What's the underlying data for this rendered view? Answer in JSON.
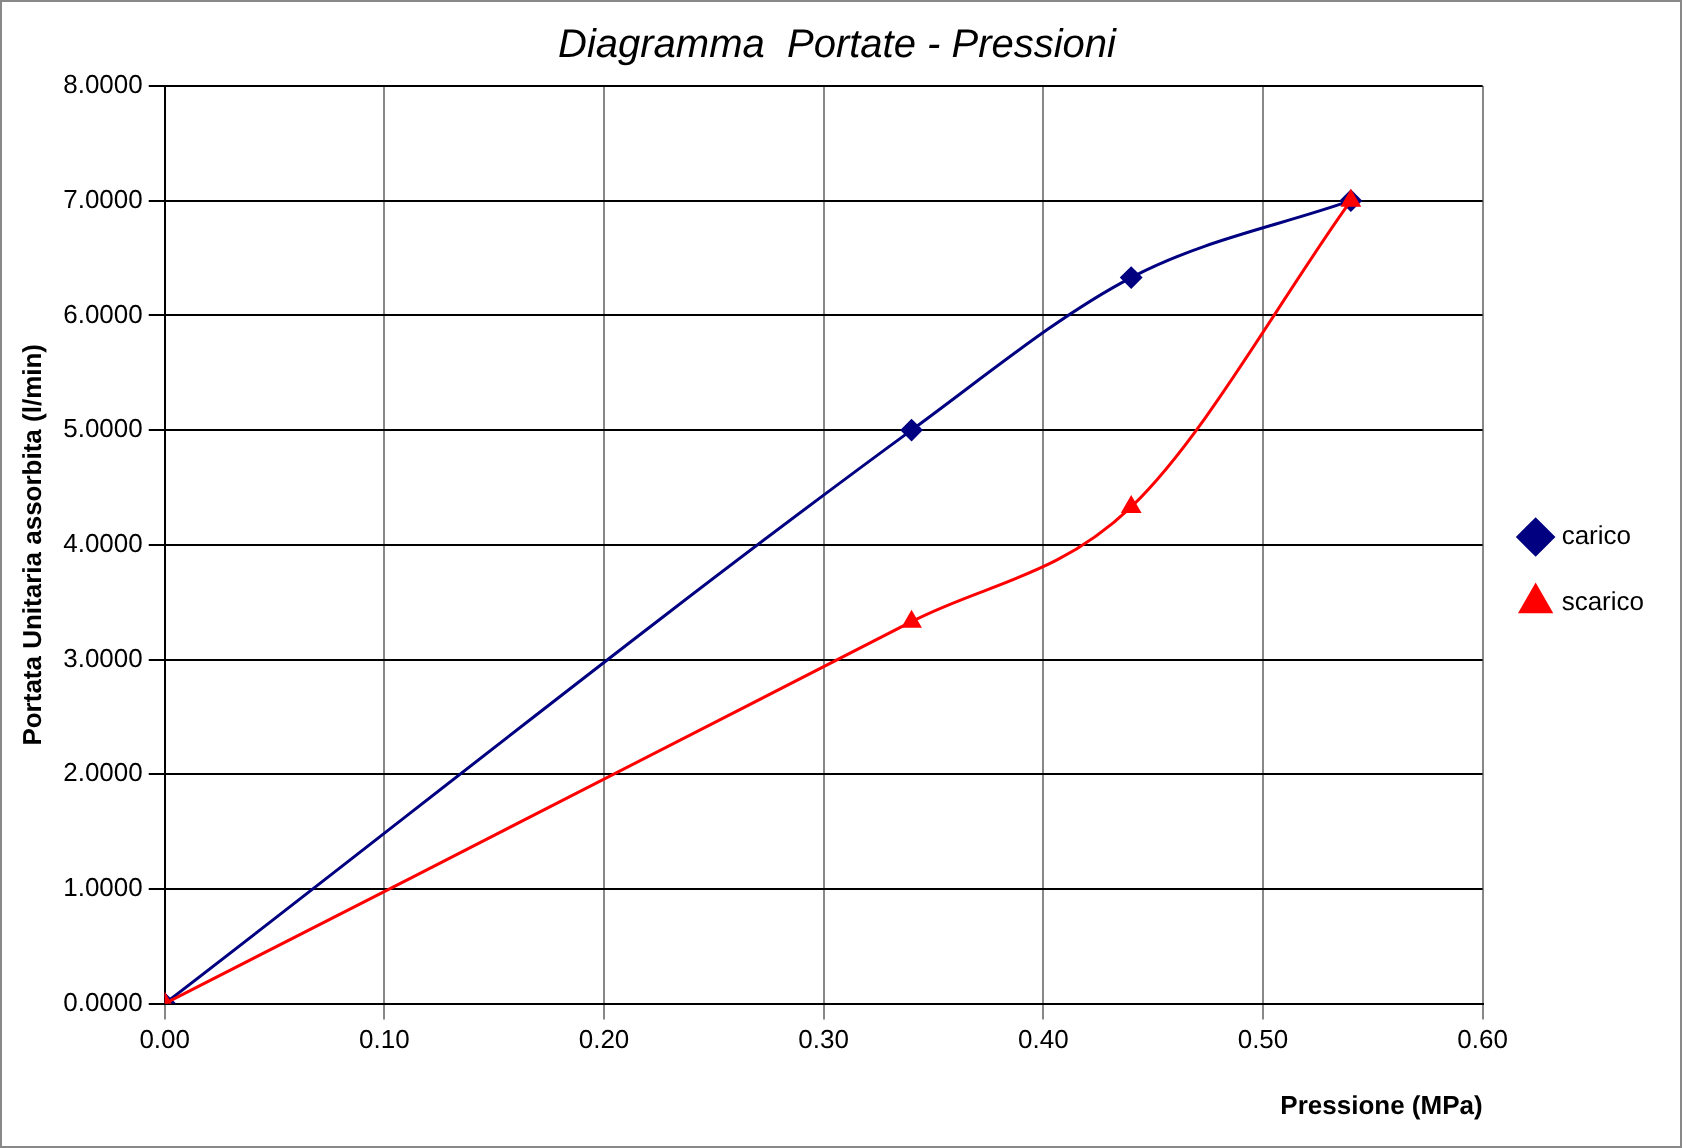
{
  "chart_data": {
    "type": "line",
    "title": "Diagramma  Portate - Pressioni",
    "xlabel": "Pressione (MPa)",
    "ylabel": "Portata Unitaria assorbita (l/min)",
    "x": [
      0,
      0.34,
      0.44,
      0.54
    ],
    "series": [
      {
        "name": "carico",
        "color": "#000080",
        "marker": "diamond",
        "values": [
          0,
          5.0,
          6.33,
          7.0
        ]
      },
      {
        "name": "scarico",
        "color": "#ff0000",
        "marker": "triangle",
        "values": [
          0,
          3.33,
          4.33,
          7.0
        ]
      }
    ],
    "xlim": [
      0,
      0.6
    ],
    "xticks": [
      {
        "value": 0,
        "label": "0.00"
      },
      {
        "value": 0.1,
        "label": "0.10"
      },
      {
        "value": 0.2,
        "label": "0.20"
      },
      {
        "value": 0.3,
        "label": "0.30"
      },
      {
        "value": 0.4,
        "label": "0.40"
      },
      {
        "value": 0.5,
        "label": "0.50"
      },
      {
        "value": 0.6,
        "label": "0.60"
      }
    ],
    "ylim": [
      0,
      8
    ],
    "yticks": [
      {
        "value": 0,
        "label": "0.0000"
      },
      {
        "value": 1,
        "label": "1.0000"
      },
      {
        "value": 2,
        "label": "2.0000"
      },
      {
        "value": 3,
        "label": "3.0000"
      },
      {
        "value": 4,
        "label": "4.0000"
      },
      {
        "value": 5,
        "label": "5.0000"
      },
      {
        "value": 6,
        "label": "6.0000"
      },
      {
        "value": 7,
        "label": "7.0000"
      },
      {
        "value": 8,
        "label": "8.0000"
      }
    ],
    "grid": true,
    "legend": "right",
    "line_style": "solid"
  }
}
